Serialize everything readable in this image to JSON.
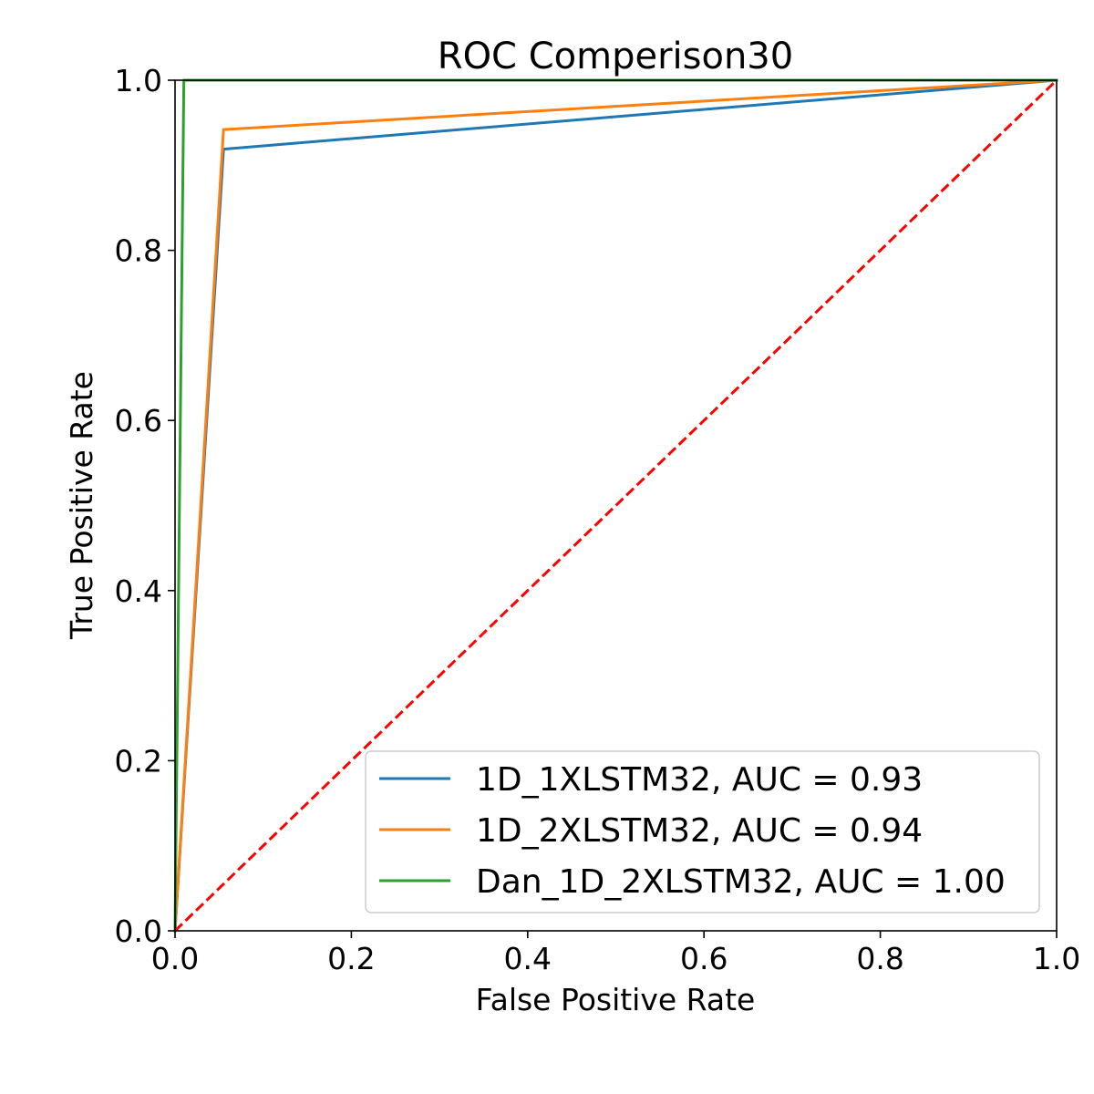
{
  "chart_data": {
    "type": "line",
    "title": "ROC Comperison30",
    "xlabel": "False Positive Rate",
    "ylabel": "True Positive Rate",
    "xlim": [
      0.0,
      1.0
    ],
    "ylim": [
      0.0,
      1.0
    ],
    "x_ticks": [
      "0.0",
      "0.2",
      "0.4",
      "0.6",
      "0.8",
      "1.0"
    ],
    "y_ticks": [
      "0.0",
      "0.2",
      "0.4",
      "0.6",
      "0.8",
      "1.0"
    ],
    "grid": false,
    "legend_position": "lower-right",
    "series": [
      {
        "name": "1D_1XLSTM32, AUC = 0.93",
        "color": "#1f77b4",
        "x": [
          0.0,
          0.055,
          1.0
        ],
        "y": [
          0.0,
          0.919,
          1.0
        ]
      },
      {
        "name": "1D_2XLSTM32, AUC = 0.94",
        "color": "#ff7f0e",
        "x": [
          0.0,
          0.055,
          1.0
        ],
        "y": [
          0.0,
          0.942,
          1.0
        ]
      },
      {
        "name": "Dan_1D_2XLSTM32, AUC = 1.00",
        "color": "#2ca02c",
        "x": [
          0.0,
          0.01,
          1.0
        ],
        "y": [
          0.0,
          1.0,
          1.0
        ]
      }
    ],
    "reference_line": {
      "x": [
        0.0,
        1.0
      ],
      "y": [
        0.0,
        1.0
      ],
      "color": "#ff0000",
      "style": "dashed"
    }
  }
}
